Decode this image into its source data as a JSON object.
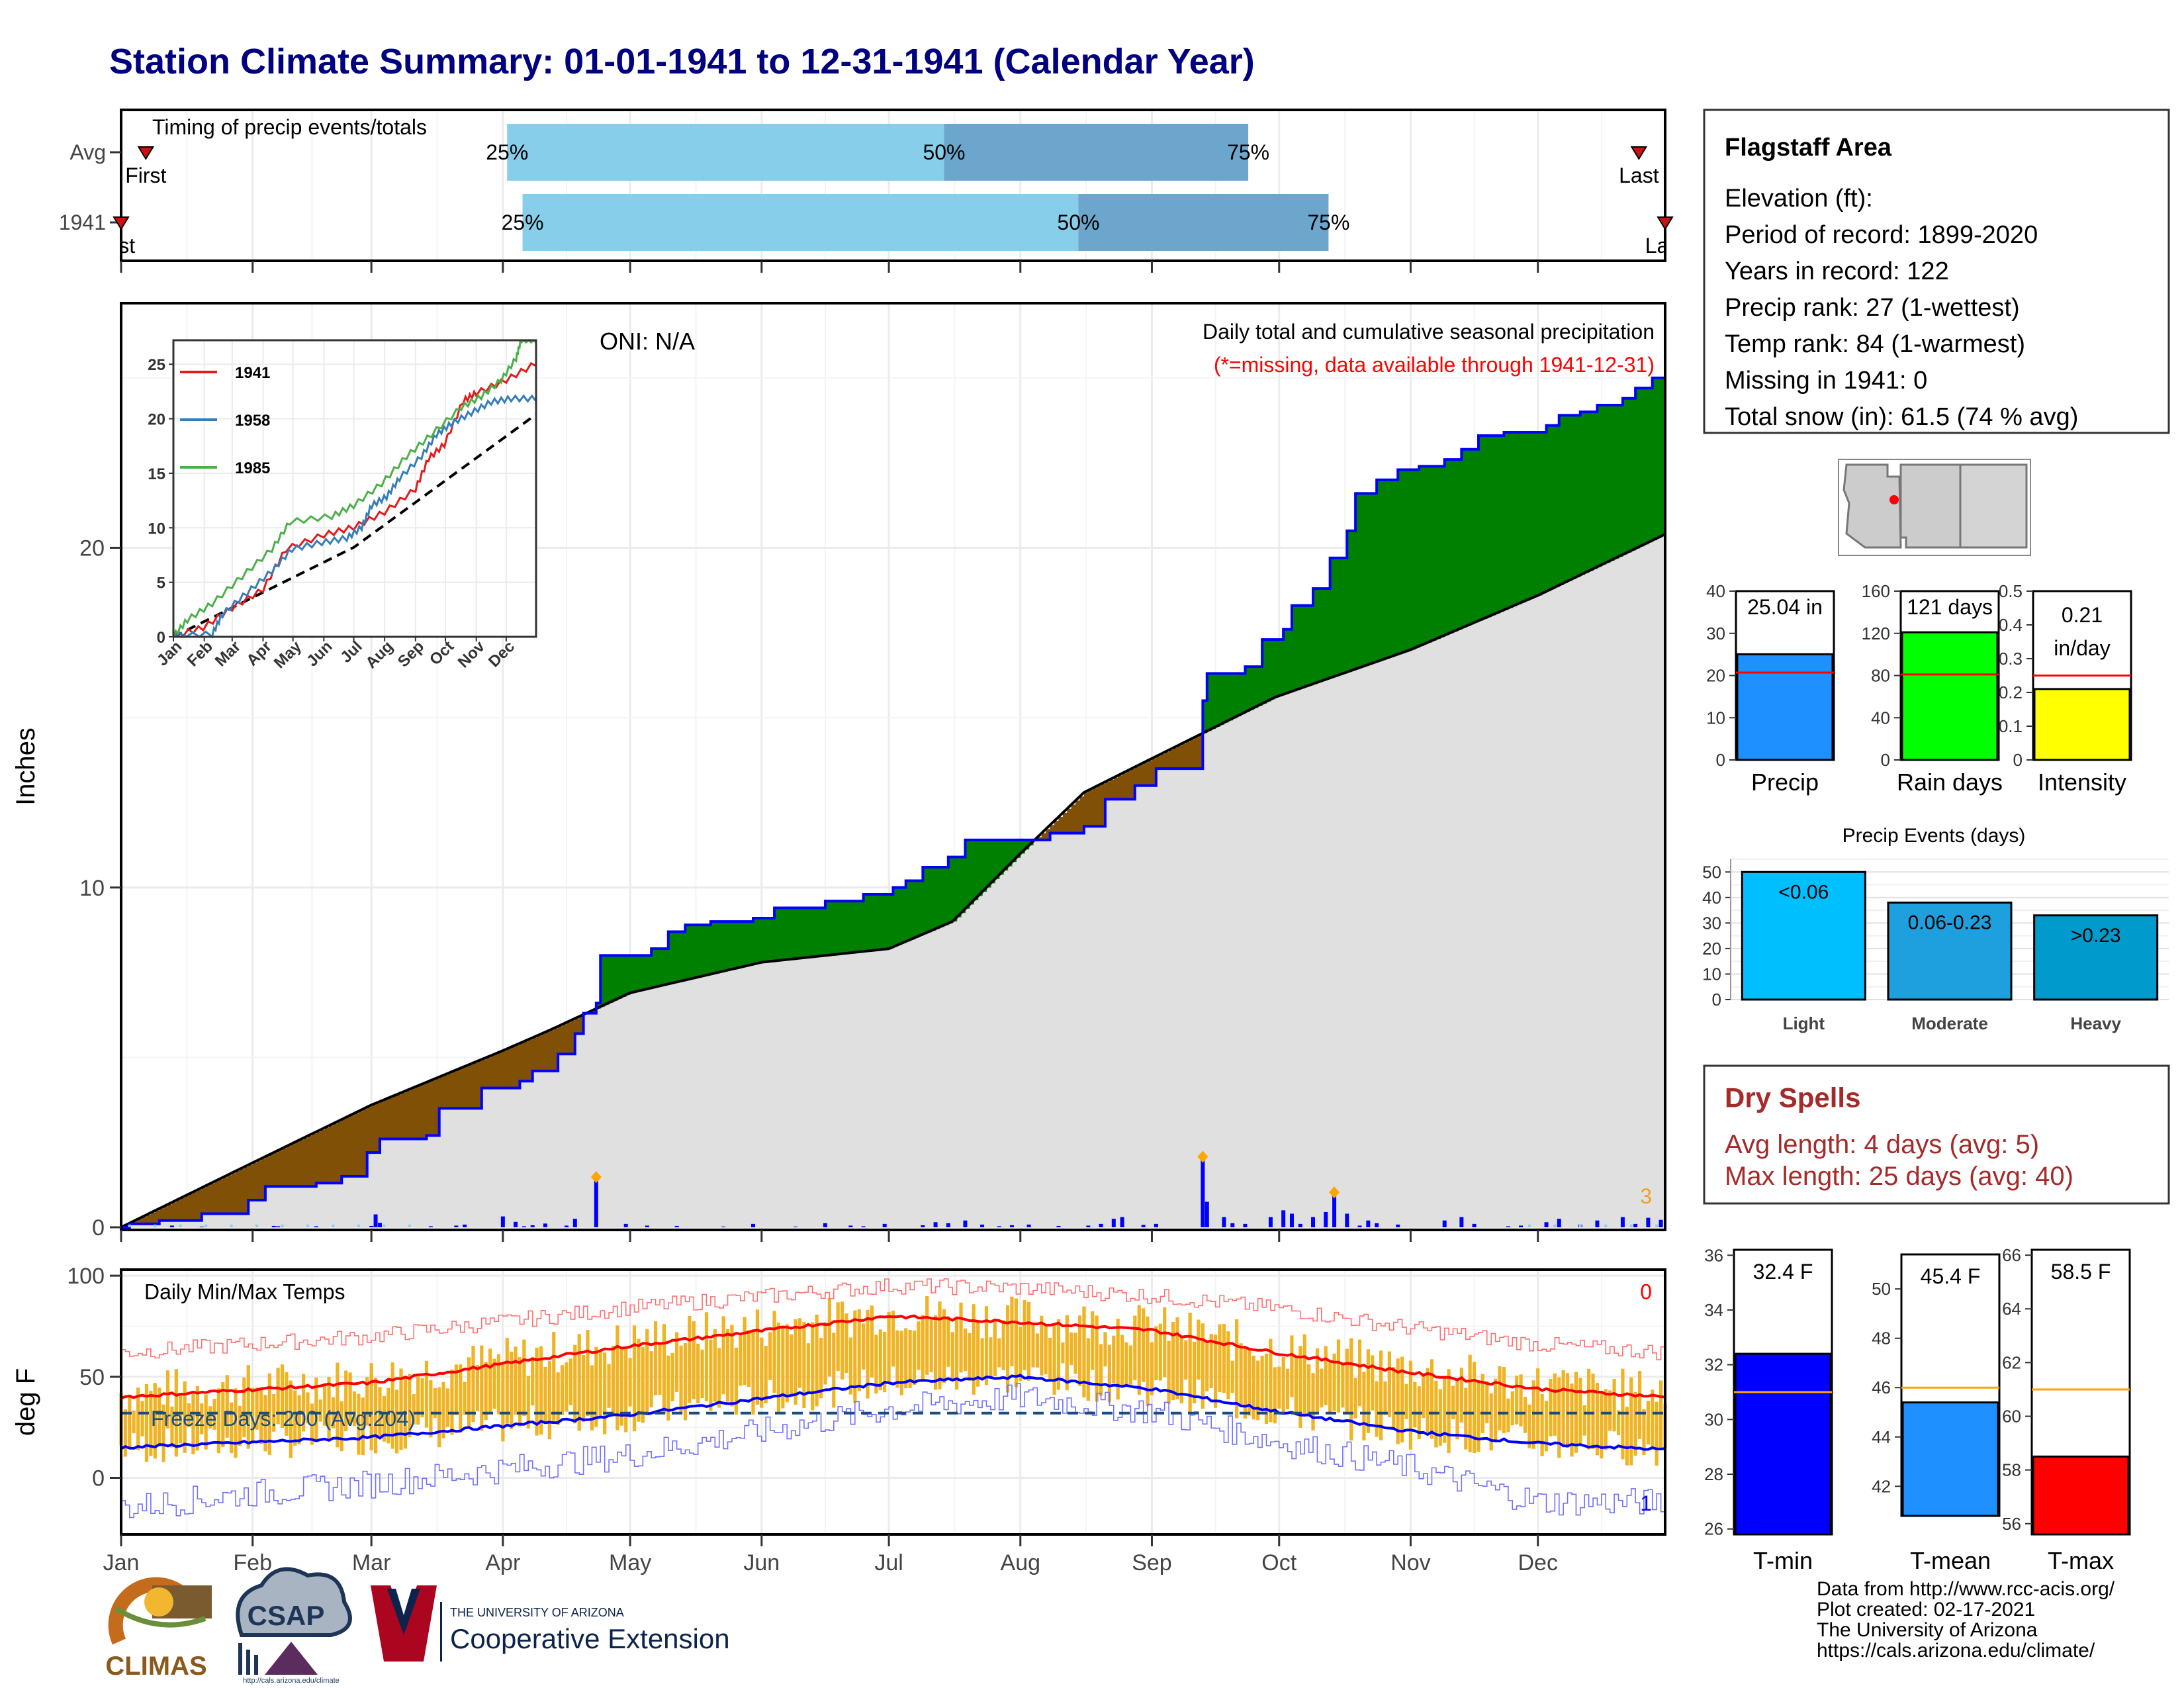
{
  "title": "Station Climate Summary: 01-01-1941 to 12-31-1941 (Calendar Year)",
  "colors": {
    "title": "#000080",
    "cum_green": "#008000",
    "cum_brown": "#7f5006",
    "climo_gray": "#e0e0e0",
    "bar_blue": "#0000ff",
    "temp_bar": "#f0b323",
    "tmax_line": "#ff0000",
    "tmin_line": "#0000ff",
    "dry_spell": "#a52a2a"
  },
  "timing": {
    "title": "Timing of precip events/totals",
    "rows": [
      {
        "label": "Avg",
        "p25": 0.25,
        "p50": 0.533,
        "p75": 0.73,
        "first_label": "First",
        "first_frac": 0.016,
        "last_label": "Last",
        "last_frac": 0.983
      },
      {
        "label": "1941",
        "p25": 0.26,
        "p50": 0.62,
        "p75": 0.782,
        "first_label": "First",
        "first_frac": 0.0,
        "last_label": "Last",
        "last_frac": 1.0
      }
    ],
    "pct_labels": [
      "25%",
      "50%",
      "75%"
    ]
  },
  "months": [
    "Jan",
    "Feb",
    "Mar",
    "Apr",
    "May",
    "Jun",
    "Jul",
    "Aug",
    "Sep",
    "Oct",
    "Nov",
    "Dec"
  ],
  "precip_chart": {
    "ylabel": "Inches",
    "oni": "ONI: N/A",
    "subtitle": "Daily total and cumulative seasonal precipitation",
    "missing_note": "(*=missing, data available through 1941-12-31)",
    "corner_value": "3",
    "yticks": [
      0,
      10,
      20
    ],
    "ylim": [
      0,
      27.2
    ]
  },
  "chart_data": [
    {
      "type": "area",
      "name": "cumulative-precip",
      "xlim": [
        1,
        365
      ],
      "ylim": [
        0,
        27.2
      ],
      "observed": [
        [
          1,
          0
        ],
        [
          3,
          0.1
        ],
        [
          10,
          0.2
        ],
        [
          20,
          0.4
        ],
        [
          31,
          0.8
        ],
        [
          35,
          1.2
        ],
        [
          47,
          1.3
        ],
        [
          53,
          1.5
        ],
        [
          59,
          2.2
        ],
        [
          62,
          2.6
        ],
        [
          73,
          2.7
        ],
        [
          76,
          3.5
        ],
        [
          86,
          4.1
        ],
        [
          95,
          4.3
        ],
        [
          98,
          4.6
        ],
        [
          104,
          5.1
        ],
        [
          108,
          5.7
        ],
        [
          110,
          6.3
        ],
        [
          113,
          6.6
        ],
        [
          114,
          8.0
        ],
        [
          126,
          8.2
        ],
        [
          130,
          8.7
        ],
        [
          134,
          8.9
        ],
        [
          140,
          9.0
        ],
        [
          150,
          9.1
        ],
        [
          155,
          9.4
        ],
        [
          167,
          9.6
        ],
        [
          176,
          9.8
        ],
        [
          183,
          10.0
        ],
        [
          186,
          10.2
        ],
        [
          190,
          10.6
        ],
        [
          196,
          10.9
        ],
        [
          200,
          11.4
        ],
        [
          213,
          11.4
        ],
        [
          220,
          11.6
        ],
        [
          228,
          11.8
        ],
        [
          233,
          12.6
        ],
        [
          240,
          13.0
        ],
        [
          245,
          13.5
        ],
        [
          254,
          13.5
        ],
        [
          256,
          15.5
        ],
        [
          257,
          16.3
        ],
        [
          266,
          16.5
        ],
        [
          270,
          17.3
        ],
        [
          275,
          17.6
        ],
        [
          277,
          18.3
        ],
        [
          282,
          18.8
        ],
        [
          286,
          19.7
        ],
        [
          290,
          20.5
        ],
        [
          292,
          21.6
        ],
        [
          297,
          22.0
        ],
        [
          302,
          22.3
        ],
        [
          307,
          22.4
        ],
        [
          313,
          22.6
        ],
        [
          317,
          22.9
        ],
        [
          321,
          23.3
        ],
        [
          327,
          23.4
        ],
        [
          337,
          23.6
        ],
        [
          340,
          23.9
        ],
        [
          345,
          24.0
        ],
        [
          349,
          24.2
        ],
        [
          355,
          24.4
        ],
        [
          358,
          24.7
        ],
        [
          362,
          25.0
        ],
        [
          365,
          25.04
        ]
      ],
      "climatology": [
        [
          1,
          0
        ],
        [
          32,
          1.9
        ],
        [
          60,
          3.6
        ],
        [
          91,
          5.2
        ],
        [
          102,
          5.8
        ],
        [
          121,
          6.9
        ],
        [
          152,
          7.8
        ],
        [
          182,
          8.2
        ],
        [
          197,
          9.0
        ],
        [
          213,
          11.0
        ],
        [
          228,
          12.8
        ],
        [
          244,
          13.8
        ],
        [
          273,
          15.6
        ],
        [
          305,
          17.0
        ],
        [
          335,
          18.6
        ],
        [
          365,
          20.4
        ]
      ],
      "daily": [
        [
          13,
          0.05
        ],
        [
          20,
          0.02
        ],
        [
          37,
          0.04
        ],
        [
          38,
          0.03
        ],
        [
          47,
          0.03
        ],
        [
          60,
          0.04
        ],
        [
          61,
          0.38
        ],
        [
          62,
          0.13
        ],
        [
          74,
          0.03
        ],
        [
          80,
          0.05
        ],
        [
          82,
          0.08
        ],
        [
          91,
          0.32
        ],
        [
          94,
          0.16
        ],
        [
          96,
          0.03
        ],
        [
          98,
          0.06
        ],
        [
          101,
          0.11
        ],
        [
          106,
          0.05
        ],
        [
          108,
          0.25
        ],
        [
          113,
          1.4
        ],
        [
          120,
          0.1
        ],
        [
          125,
          0.05
        ],
        [
          132,
          0.04
        ],
        [
          143,
          0.02
        ],
        [
          150,
          0.1
        ],
        [
          160,
          0.02
        ],
        [
          167,
          0.12
        ],
        [
          173,
          0.05
        ],
        [
          176,
          0.03
        ],
        [
          181,
          0.1
        ],
        [
          190,
          0.06
        ],
        [
          193,
          0.15
        ],
        [
          196,
          0.12
        ],
        [
          200,
          0.2
        ],
        [
          204,
          0.08
        ],
        [
          208,
          0.03
        ],
        [
          211,
          0.06
        ],
        [
          215,
          0.08
        ],
        [
          222,
          0.04
        ],
        [
          229,
          0.05
        ],
        [
          232,
          0.1
        ],
        [
          235,
          0.25
        ],
        [
          237,
          0.3
        ],
        [
          242,
          0.07
        ],
        [
          245,
          0.1
        ],
        [
          256,
          2.0
        ],
        [
          257,
          0.75
        ],
        [
          261,
          0.3
        ],
        [
          263,
          0.12
        ],
        [
          266,
          0.1
        ],
        [
          272,
          0.3
        ],
        [
          275,
          0.5
        ],
        [
          277,
          0.4
        ],
        [
          279,
          0.1
        ],
        [
          282,
          0.3
        ],
        [
          285,
          0.45
        ],
        [
          287,
          0.95
        ],
        [
          290,
          0.4
        ],
        [
          293,
          0.05
        ],
        [
          295,
          0.2
        ],
        [
          297,
          0.12
        ],
        [
          302,
          0.08
        ],
        [
          313,
          0.2
        ],
        [
          317,
          0.3
        ],
        [
          320,
          0.1
        ],
        [
          328,
          0.03
        ],
        [
          331,
          0.05
        ],
        [
          337,
          0.15
        ],
        [
          340,
          0.25
        ],
        [
          345,
          0.08
        ],
        [
          349,
          0.2
        ],
        [
          355,
          0.3
        ],
        [
          358,
          0.1
        ],
        [
          361,
          0.28
        ],
        [
          364,
          0.22
        ]
      ],
      "daily_flagged": [
        113,
        256,
        287
      ]
    },
    {
      "type": "line",
      "name": "inset-cumulative",
      "xlim": [
        1,
        365
      ],
      "ylim": [
        0,
        27.2
      ],
      "yticks": [
        0,
        5,
        10,
        15,
        20,
        25
      ],
      "series": [
        {
          "name": "1941",
          "color": "#e41a1c",
          "points": [
            [
              1,
              0
            ],
            [
              31,
              0.8
            ],
            [
              60,
              2.6
            ],
            [
              91,
              4.3
            ],
            [
              114,
              8.0
            ],
            [
              152,
              9.3
            ],
            [
              182,
              10.0
            ],
            [
              213,
              11.4
            ],
            [
              244,
              13.5
            ],
            [
              257,
              16.3
            ],
            [
              273,
              17.6
            ],
            [
              292,
              21.6
            ],
            [
              305,
              22.3
            ],
            [
              335,
              23.5
            ],
            [
              365,
              25.04
            ]
          ]
        },
        {
          "name": "1958",
          "color": "#377eb8",
          "points": [
            [
              1,
              0
            ],
            [
              40,
              0.2
            ],
            [
              50,
              2.0
            ],
            [
              75,
              4.0
            ],
            [
              100,
              6.0
            ],
            [
              120,
              8.0
            ],
            [
              150,
              8.6
            ],
            [
              175,
              9.0
            ],
            [
              190,
              10.0
            ],
            [
              200,
              12.0
            ],
            [
              215,
              12.8
            ],
            [
              228,
              14.5
            ],
            [
              250,
              16.5
            ],
            [
              265,
              18.5
            ],
            [
              280,
              19.5
            ],
            [
              300,
              20.5
            ],
            [
              320,
              21.5
            ],
            [
              340,
              21.8
            ],
            [
              365,
              21.8
            ]
          ]
        },
        {
          "name": "1985",
          "color": "#4daf4a",
          "points": [
            [
              1,
              0
            ],
            [
              15,
              1.5
            ],
            [
              40,
              3.0
            ],
            [
              70,
              5.5
            ],
            [
              100,
              8.0
            ],
            [
              118,
              10.5
            ],
            [
              160,
              11.0
            ],
            [
              182,
              12.0
            ],
            [
              210,
              14.0
            ],
            [
              235,
              16.5
            ],
            [
              260,
              18.5
            ],
            [
              290,
              21.0
            ],
            [
              310,
              22.0
            ],
            [
              330,
              23.5
            ],
            [
              345,
              25.5
            ],
            [
              350,
              27.2
            ],
            [
              365,
              27.2
            ]
          ]
        }
      ],
      "climatology": [
        [
          1,
          0
        ],
        [
          182,
          8.2
        ],
        [
          365,
          20.4
        ]
      ]
    },
    {
      "type": "line",
      "name": "daily-temps",
      "title": "Daily Min/Max Temps",
      "ylabel": "deg F",
      "xlim": [
        1,
        365
      ],
      "ylim": [
        -28,
        103
      ],
      "yticks": [
        0,
        50,
        100
      ],
      "freeze_line": 32,
      "freeze_label": "Freeze Days: 200 (Avg:204)",
      "corner_top": "0",
      "corner_bottom": "1",
      "avg_tmax": [
        [
          1,
          40
        ],
        [
          60,
          47
        ],
        [
          120,
          65
        ],
        [
          182,
          80
        ],
        [
          213,
          77
        ],
        [
          244,
          73
        ],
        [
          273,
          62
        ],
        [
          305,
          52
        ],
        [
          335,
          44
        ],
        [
          365,
          40
        ]
      ],
      "avg_tmin": [
        [
          1,
          15
        ],
        [
          60,
          20
        ],
        [
          120,
          31
        ],
        [
          182,
          47
        ],
        [
          213,
          50
        ],
        [
          244,
          44
        ],
        [
          273,
          33
        ],
        [
          305,
          23
        ],
        [
          335,
          17
        ],
        [
          365,
          14
        ]
      ],
      "record_high": [
        [
          1,
          62
        ],
        [
          60,
          70
        ],
        [
          120,
          84
        ],
        [
          182,
          95
        ],
        [
          213,
          94
        ],
        [
          244,
          90
        ],
        [
          273,
          84
        ],
        [
          305,
          74
        ],
        [
          335,
          66
        ],
        [
          365,
          62
        ]
      ],
      "record_low": [
        [
          1,
          -15
        ],
        [
          30,
          -8
        ],
        [
          60,
          -3
        ],
        [
          120,
          11
        ],
        [
          182,
          34
        ],
        [
          213,
          40
        ],
        [
          244,
          33
        ],
        [
          273,
          18
        ],
        [
          305,
          5
        ],
        [
          335,
          -12
        ],
        [
          365,
          -12
        ]
      ]
    },
    {
      "type": "bar",
      "name": "precip-summary",
      "categories": [
        "Precip",
        "Rain days",
        "Intensity"
      ],
      "values": [
        25.04,
        121,
        0.21
      ],
      "averages": [
        20.7,
        81,
        0.25
      ],
      "labels": [
        "25.04 in",
        "121 days",
        "0.21 in/day"
      ],
      "ylims": [
        [
          0,
          40
        ],
        [
          0,
          160
        ],
        [
          0,
          0.5
        ]
      ],
      "yticks": [
        [
          0,
          10,
          20,
          30,
          40
        ],
        [
          0,
          40,
          80,
          120,
          160
        ],
        [
          0.0,
          0.1,
          0.2,
          0.3,
          0.4,
          0.5
        ]
      ],
      "colors": [
        "#1e90ff",
        "#00ff00",
        "#ffff00"
      ]
    },
    {
      "type": "bar",
      "name": "precip-events",
      "title": "Precip Events (days)",
      "categories": [
        "Light",
        "Moderate",
        "Heavy"
      ],
      "values": [
        50,
        38,
        33
      ],
      "bar_labels": [
        "<0.06",
        "0.06-0.23",
        ">0.23"
      ],
      "ylim": [
        0,
        55
      ],
      "yticks": [
        0,
        10,
        20,
        30,
        40,
        50
      ],
      "colors": [
        "#00bfff",
        "#1e9fde",
        "#009acd"
      ]
    },
    {
      "type": "bar",
      "name": "temp-summary",
      "categories": [
        "T-min",
        "T-mean",
        "T-max"
      ],
      "values": [
        32.4,
        45.4,
        58.5
      ],
      "averages": [
        31.0,
        46.0,
        61.0
      ],
      "labels": [
        "32.4 F",
        "45.4 F",
        "58.5 F"
      ],
      "ylims": [
        [
          25.8,
          36.2
        ],
        [
          40.8,
          51.4
        ],
        [
          55.6,
          66.2
        ]
      ],
      "yticks": [
        [
          26,
          28,
          30,
          32,
          34,
          36
        ],
        [
          42,
          44,
          46,
          48,
          50
        ],
        [
          56,
          58,
          60,
          62,
          64,
          66
        ]
      ],
      "colors": [
        "#0000ff",
        "#1e90ff",
        "#ff0000"
      ]
    }
  ],
  "station": {
    "name": "Flagstaff Area",
    "lines": [
      "Elevation (ft):",
      "Period of record: 1899-2020",
      "Years in record: 122",
      "Precip rank: 27 (1-wettest)",
      "Temp rank: 84 (1-warmest)",
      "Missing in 1941: 0",
      "Total snow (in): 61.5 (74 % avg)"
    ]
  },
  "dry_spells": {
    "title": "Dry Spells",
    "avg": "Avg length: 4 days (avg: 5)",
    "max": "Max length: 25 days (avg: 40)"
  },
  "logos": {
    "climas": "CLIMAS",
    "csap": "CSAP",
    "csap_url": "http://cals.arizona.edu/climate",
    "ua_small": "THE UNIVERSITY OF ARIZONA",
    "ua_big": "Cooperative Extension"
  },
  "footer": {
    "lines": [
      "Data from http://www.rcc-acis.org/",
      "Plot created: 02-17-2021",
      "The University of Arizona",
      "https://cals.arizona.edu/climate/"
    ]
  }
}
